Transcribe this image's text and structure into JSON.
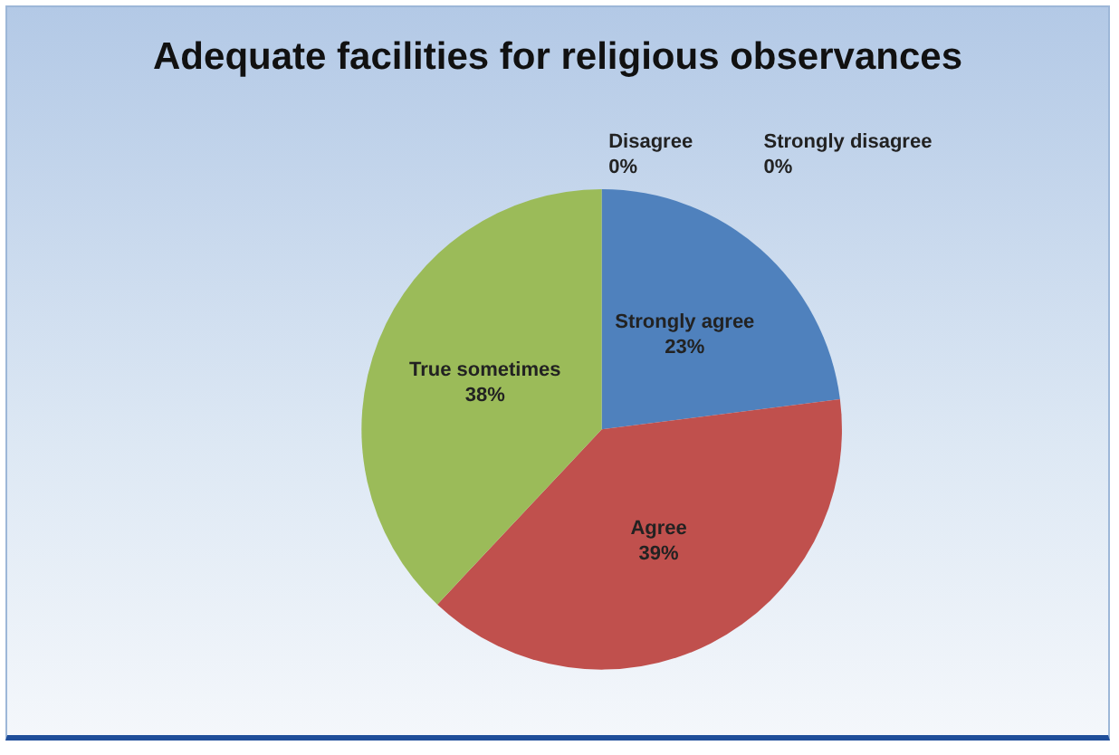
{
  "chart_data": {
    "type": "pie",
    "title": "Adequate facilities for religious observances",
    "categories": [
      "Strongly agree",
      "Agree",
      "True sometimes",
      "Disagree",
      "Strongly disagree"
    ],
    "values": [
      23,
      39,
      38,
      0,
      0
    ],
    "colors": [
      "#4f81bd",
      "#c0504d",
      "#9bbb59",
      "#8064a2",
      "#4bacc6"
    ],
    "value_labels": [
      "23%",
      "39%",
      "38%",
      "0%",
      "0%"
    ],
    "legend": false
  }
}
